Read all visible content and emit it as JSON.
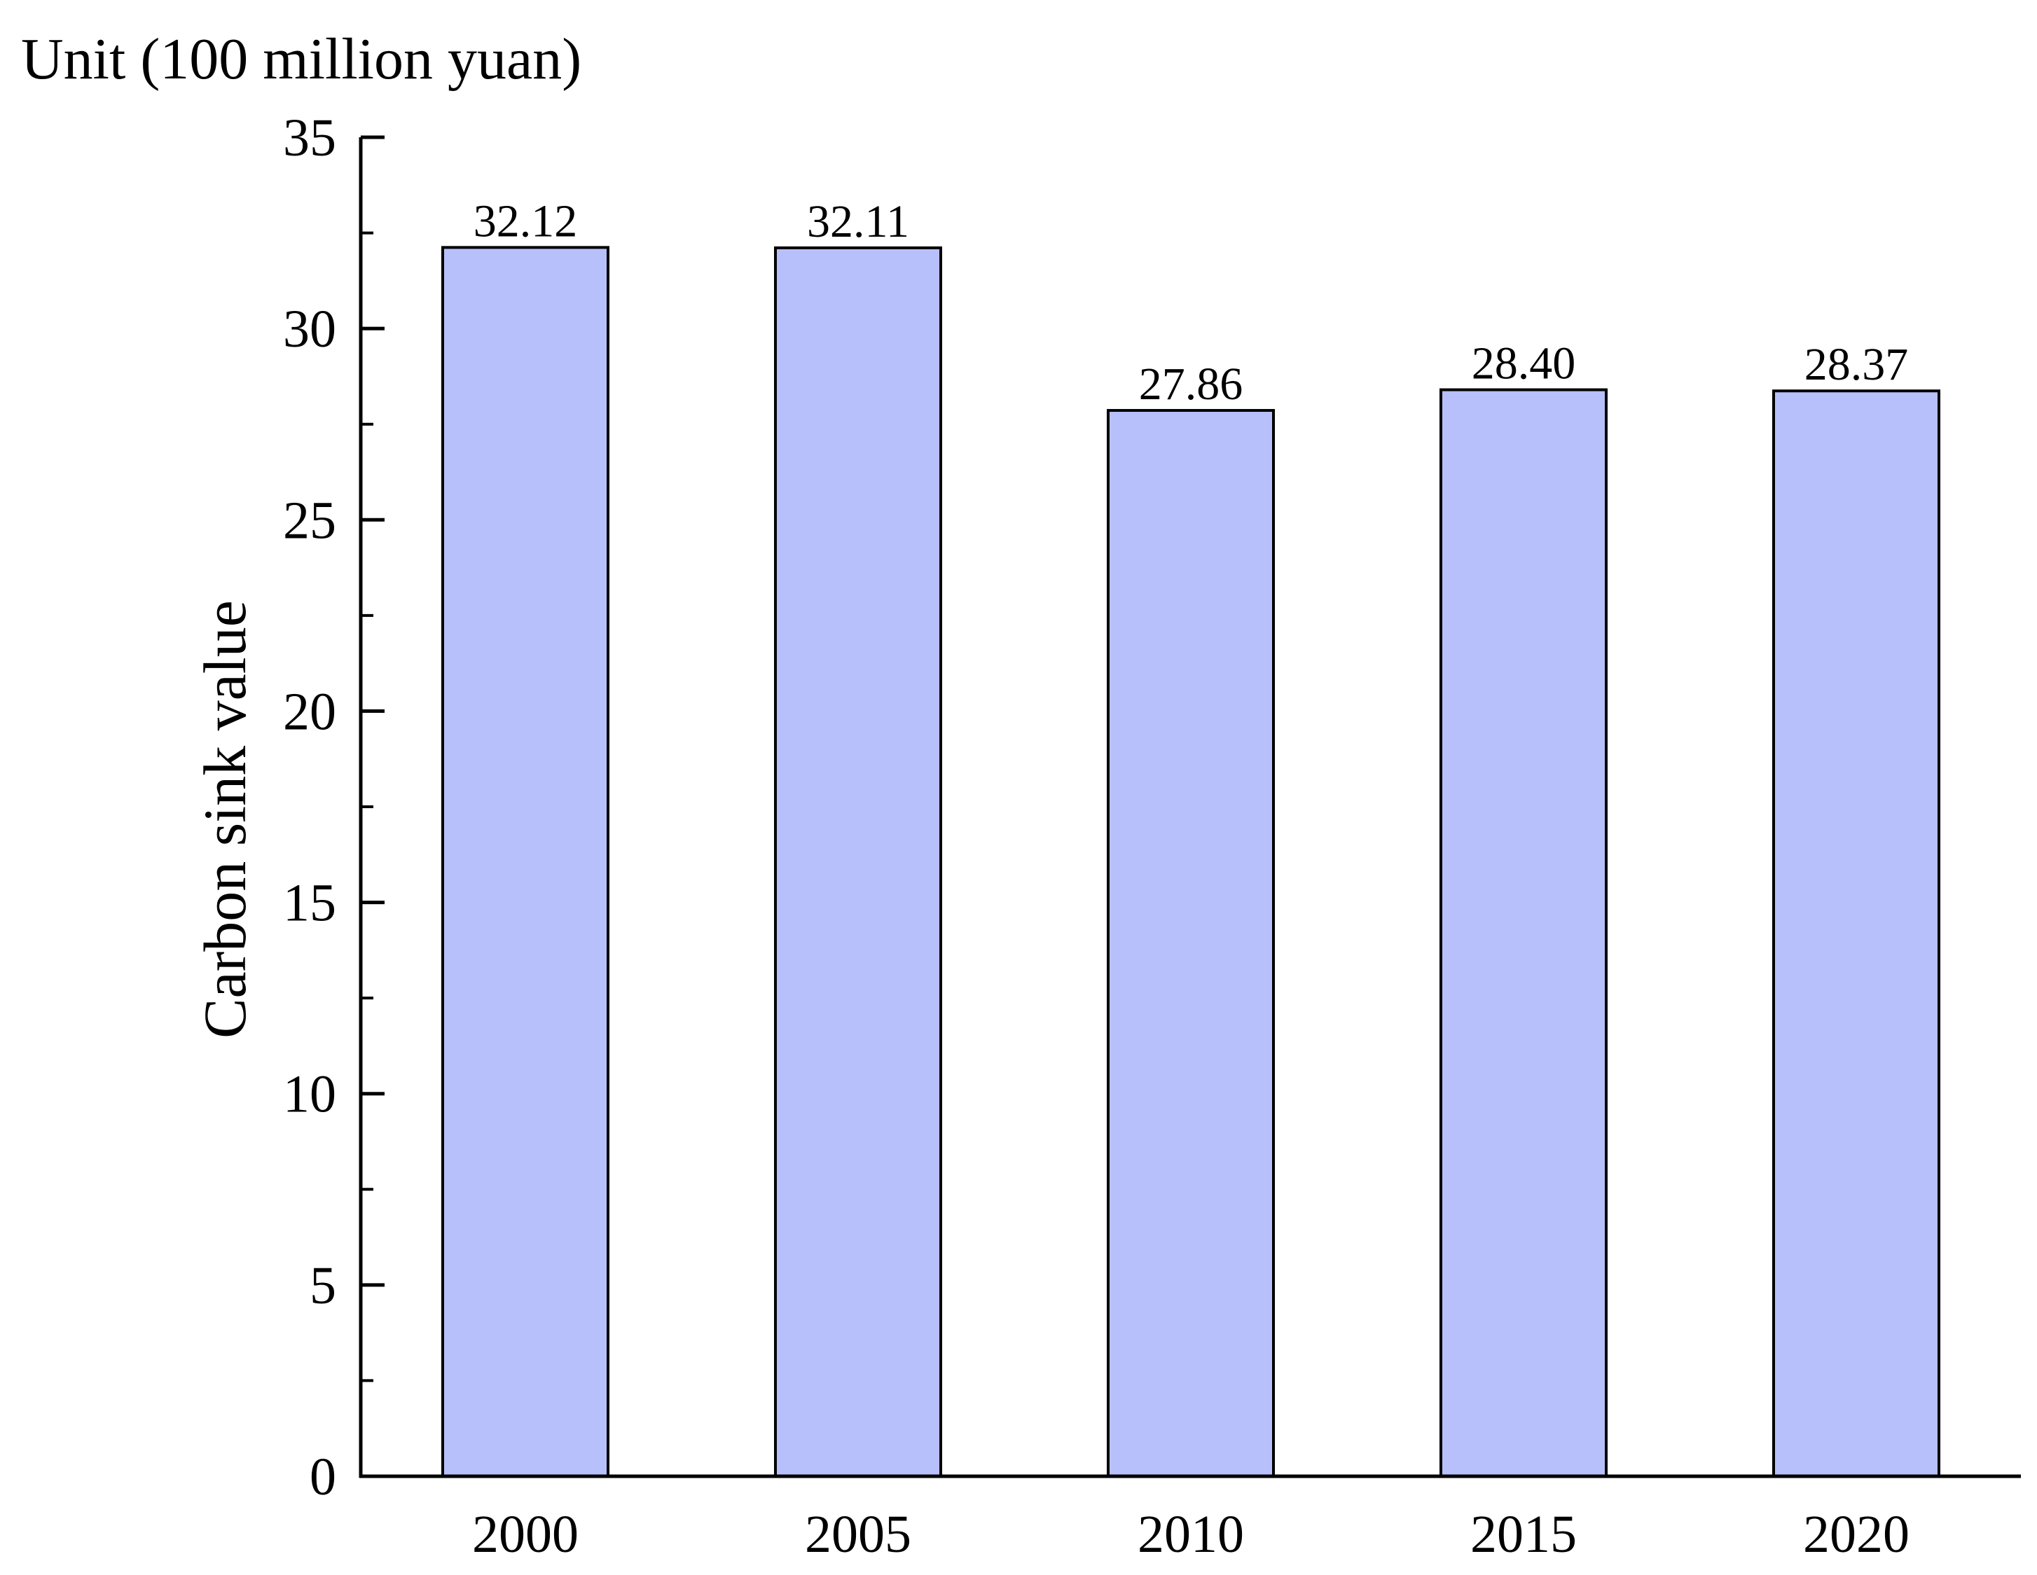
{
  "chart_data": {
    "type": "bar",
    "title": "",
    "unit_label": "Unit (100 million yuan)",
    "xlabel": "",
    "ylabel": "Carbon sink value",
    "categories": [
      "2000",
      "2005",
      "2010",
      "2015",
      "2020"
    ],
    "values": [
      32.12,
      32.11,
      27.86,
      28.4,
      28.37
    ],
    "value_labels": [
      "32.12",
      "32.11",
      "27.86",
      "28.40",
      "28.37"
    ],
    "ylim": [
      0,
      35
    ],
    "yticks": [
      0,
      5,
      10,
      15,
      20,
      25,
      30,
      35
    ],
    "ytick_labels": [
      "0",
      "5",
      "10",
      "15",
      "20",
      "25",
      "30",
      "35"
    ],
    "y_minor_step": 2.5,
    "grid": false,
    "legend": "none",
    "bar_color": "#b8c0fc",
    "bar_edge_color": "#000000"
  }
}
